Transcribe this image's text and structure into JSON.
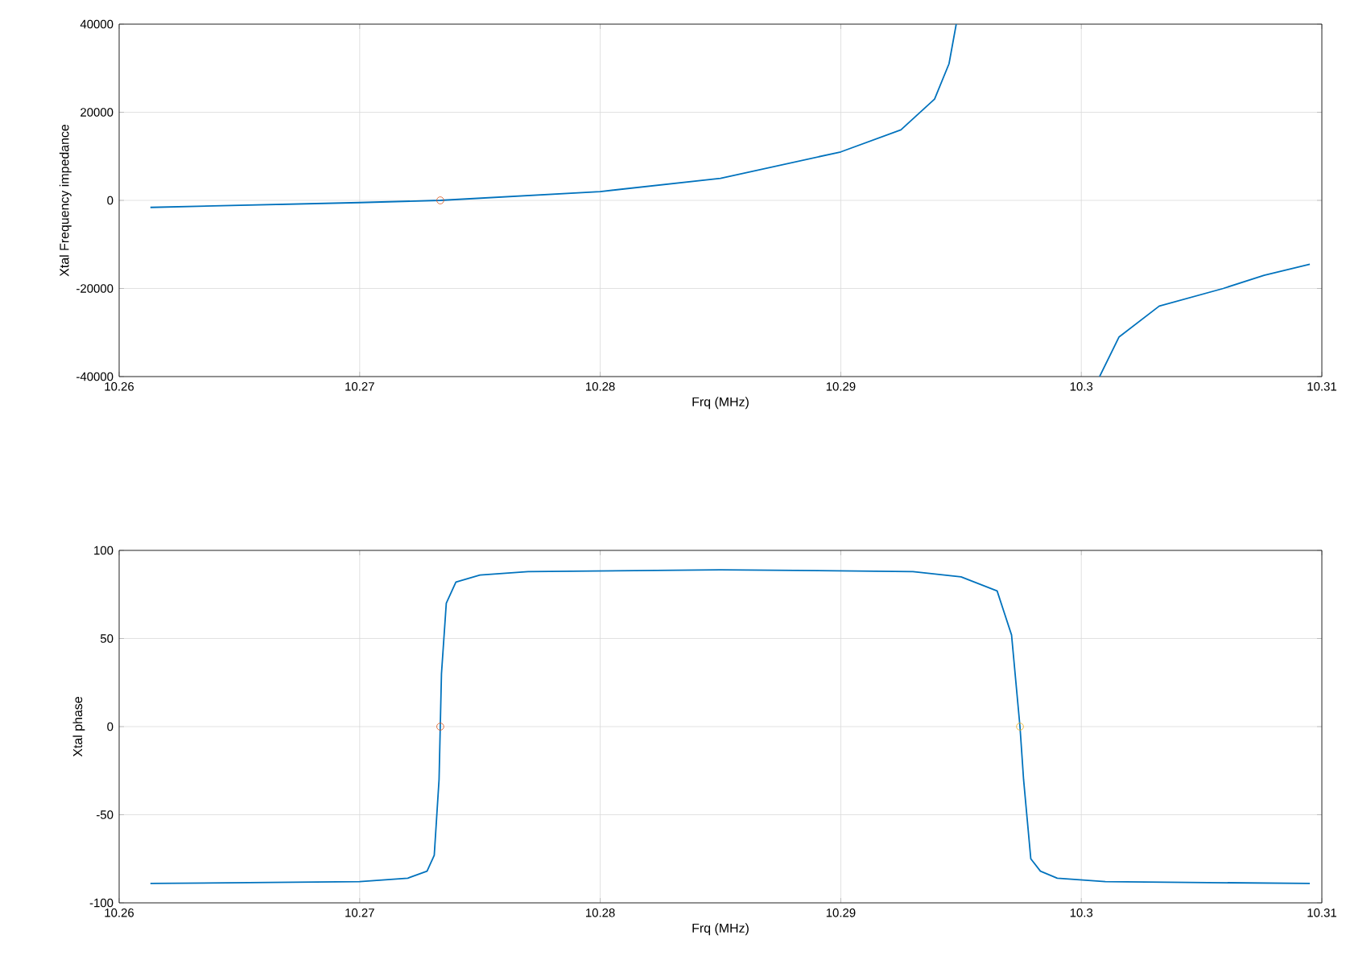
{
  "chart_data": [
    {
      "type": "line",
      "xlabel": "Frq (MHz)",
      "ylabel": "Xtal Frequency impedance",
      "xlim": [
        10.26,
        10.31
      ],
      "ylim": [
        -40000,
        40000
      ],
      "xticks": [
        10.26,
        10.27,
        10.28,
        10.29,
        10.3,
        10.31
      ],
      "yticks": [
        -40000,
        -20000,
        0,
        20000,
        40000
      ],
      "grid": true,
      "legend": false,
      "marker": "none",
      "line_style": "solid",
      "series": [
        {
          "color": "#0072bd",
          "x": [
            10.2613,
            10.27,
            10.27335,
            10.28,
            10.285,
            10.29,
            10.2925,
            10.2939,
            10.2945,
            10.2948
          ],
          "values": [
            -1600,
            -500,
            0,
            2000,
            5000,
            11000,
            16000,
            23000,
            31000,
            40000
          ]
        },
        {
          "color": "#0072bd",
          "x": [
            10.30076,
            10.30157,
            10.30324,
            10.3059,
            10.3076,
            10.3095
          ],
          "values": [
            -40000,
            -31000,
            -24000,
            -20000,
            -17000,
            -14500
          ]
        },
        {
          "type": "scatter",
          "marker": "circle",
          "color": "#d95319",
          "x": [
            10.27335
          ],
          "values": [
            0
          ]
        }
      ]
    },
    {
      "type": "line",
      "xlabel": "Frq (MHz)",
      "ylabel": "Xtal phase",
      "xlim": [
        10.26,
        10.31
      ],
      "ylim": [
        -100,
        100
      ],
      "xticks": [
        10.26,
        10.27,
        10.28,
        10.29,
        10.3,
        10.31
      ],
      "yticks": [
        -100,
        -50,
        0,
        50,
        100
      ],
      "grid": true,
      "legend": false,
      "marker": "none",
      "line_style": "solid",
      "series": [
        {
          "color": "#0072bd",
          "x": [
            10.2613,
            10.27,
            10.272,
            10.2728,
            10.2731,
            10.2733,
            10.27335,
            10.2734,
            10.2736,
            10.274,
            10.275,
            10.277,
            10.285,
            10.293,
            10.295,
            10.2965,
            10.2971,
            10.29745,
            10.2976,
            10.2979,
            10.2983,
            10.299,
            10.301,
            10.3095
          ],
          "values": [
            -89,
            -88,
            -86,
            -82,
            -73,
            -30,
            0,
            30,
            70,
            82,
            86,
            88,
            89,
            88,
            85,
            77,
            52,
            0,
            -30,
            -75,
            -82,
            -86,
            -88,
            -89
          ]
        },
        {
          "type": "scatter",
          "marker": "circle",
          "color": "#d95319",
          "x": [
            10.27335
          ],
          "values": [
            0
          ]
        },
        {
          "type": "scatter",
          "marker": "circle",
          "color": "#edb120",
          "x": [
            10.29745
          ],
          "values": [
            0
          ]
        }
      ]
    }
  ]
}
